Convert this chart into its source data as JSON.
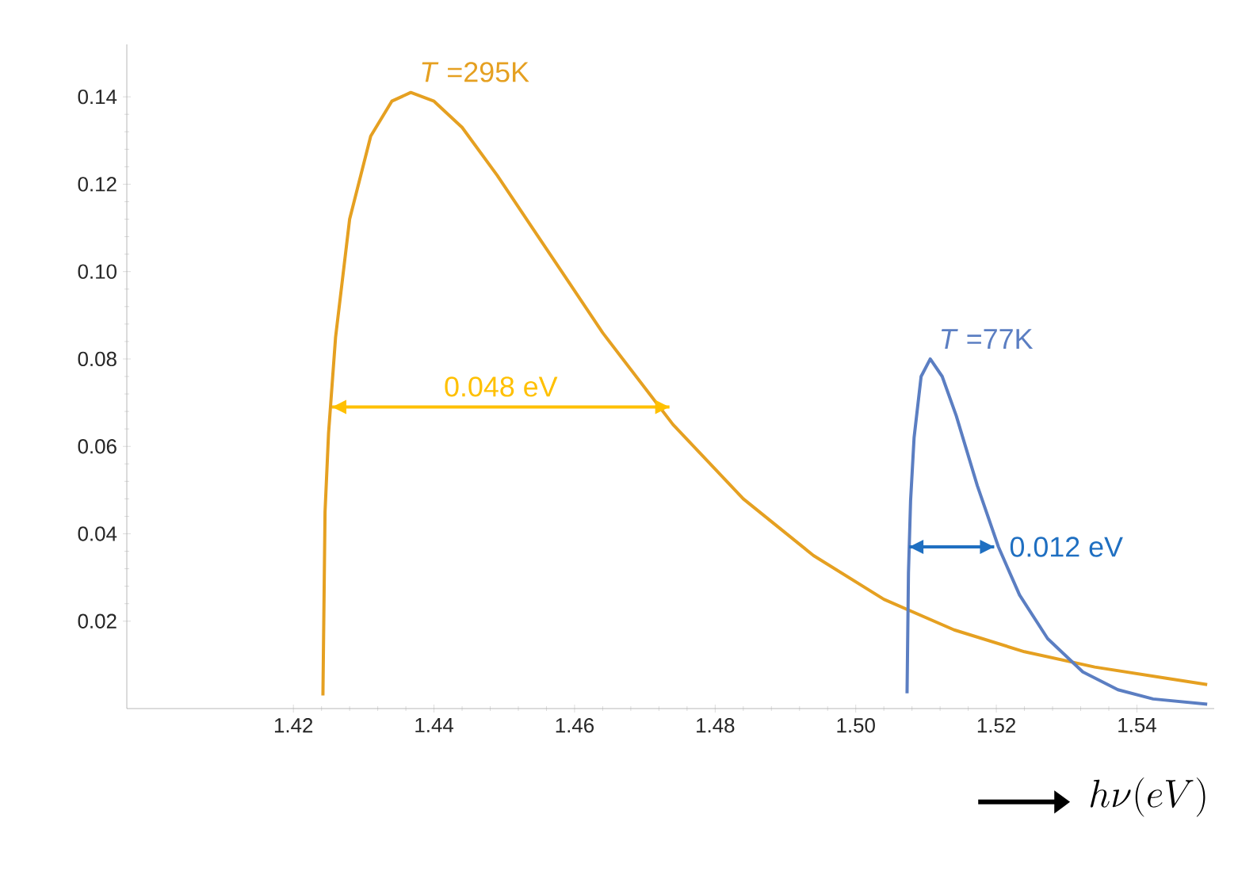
{
  "chart_data": {
    "type": "line",
    "xlabel": "h\\nu(eV)",
    "xlim": [
      1.3963,
      1.551
    ],
    "ylim": [
      0,
      0.152
    ],
    "xticks": [
      1.42,
      1.44,
      1.46,
      1.48,
      {
        "value": 1.5,
        "label": "1.50"
      },
      1.52,
      1.54
    ],
    "yticks": [
      0.02,
      0.04,
      0.06,
      0.08,
      {
        "value": 0.1,
        "label": "0.10"
      },
      0.12,
      0.14
    ],
    "grid": false,
    "legend": false,
    "marker": "none",
    "line_style": "solid",
    "series": [
      {
        "name": "*T* =295K",
        "color": "#e5a021",
        "x": [
          1.4242,
          1.4245,
          1.425,
          1.426,
          1.428,
          1.431,
          1.434,
          1.4367,
          1.44,
          1.444,
          1.449,
          1.454,
          1.459,
          1.464,
          1.474,
          1.484,
          1.494,
          1.504,
          1.514,
          1.524,
          1.534,
          1.544,
          1.55
        ],
        "values": [
          0.003,
          0.045,
          0.063,
          0.085,
          0.112,
          0.131,
          0.139,
          0.141,
          0.139,
          0.133,
          0.122,
          0.11,
          0.098,
          0.086,
          0.065,
          0.048,
          0.035,
          0.025,
          0.018,
          0.013,
          0.0095,
          0.007,
          0.0055
        ]
      },
      {
        "name": "*T* =77K",
        "color": "#5b7ec2",
        "x": [
          1.5073,
          1.5075,
          1.5078,
          1.5083,
          1.5093,
          1.5106,
          1.5123,
          1.5143,
          1.5173,
          1.5203,
          1.5233,
          1.5273,
          1.5323,
          1.5373,
          1.5423,
          1.55
        ],
        "values": [
          0.0035,
          0.031,
          0.0475,
          0.062,
          0.076,
          0.08,
          0.076,
          0.067,
          0.051,
          0.037,
          0.026,
          0.016,
          0.0084,
          0.0043,
          0.0022,
          0.001
        ]
      },
      {
        "color": "#ffc000",
        "x": [
          1.4255,
          1.4735
        ],
        "values": [
          0.069,
          0.069
        ]
      },
      {
        "color": "#1f6fc1",
        "x": [
          1.5076,
          1.5197
        ],
        "values": [
          0.037,
          0.037
        ]
      }
    ],
    "annotations": [
      "0.048 eV",
      "0.012 eV"
    ]
  }
}
